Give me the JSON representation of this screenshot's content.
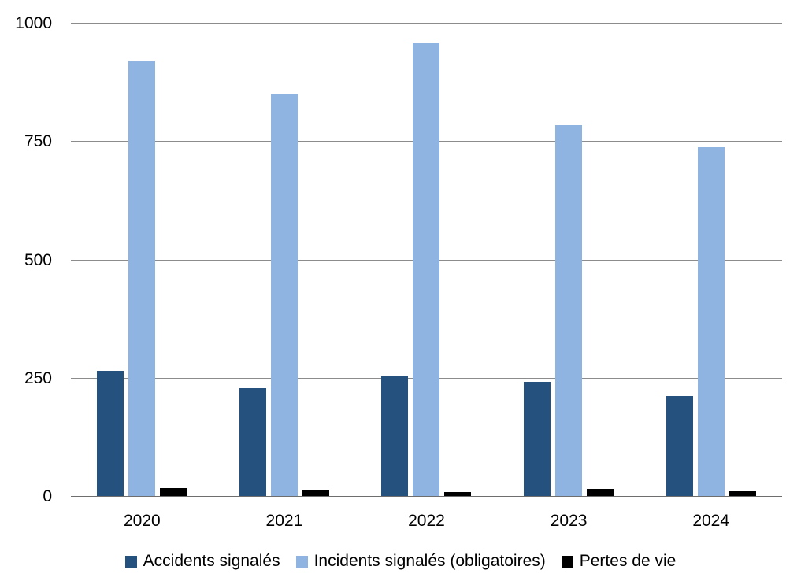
{
  "chart_data": {
    "type": "bar",
    "title": "",
    "xlabel": "",
    "ylabel": "",
    "categories": [
      "2020",
      "2021",
      "2022",
      "2023",
      "2024"
    ],
    "series": [
      {
        "name": "Accidents signalés",
        "color": "#24517E",
        "values": [
          267,
          230,
          256,
          243,
          213
        ]
      },
      {
        "name": "Incidents signalés (obligatoires)",
        "color": "#8FB4E2",
        "values": [
          922,
          850,
          960,
          785,
          739
        ]
      },
      {
        "name": "Pertes de vie",
        "color": "#000000",
        "values": [
          18,
          13,
          10,
          17,
          11
        ]
      }
    ],
    "ylim": [
      0,
      1000
    ],
    "yticks": [
      0,
      250,
      500,
      750,
      1000
    ],
    "grid": "horizontal",
    "legend_position": "bottom"
  },
  "colors": {
    "background": "#FFFFFF",
    "gridline": "#8C8C8C",
    "baseline": "#6E6E6E",
    "text": "#000000"
  }
}
